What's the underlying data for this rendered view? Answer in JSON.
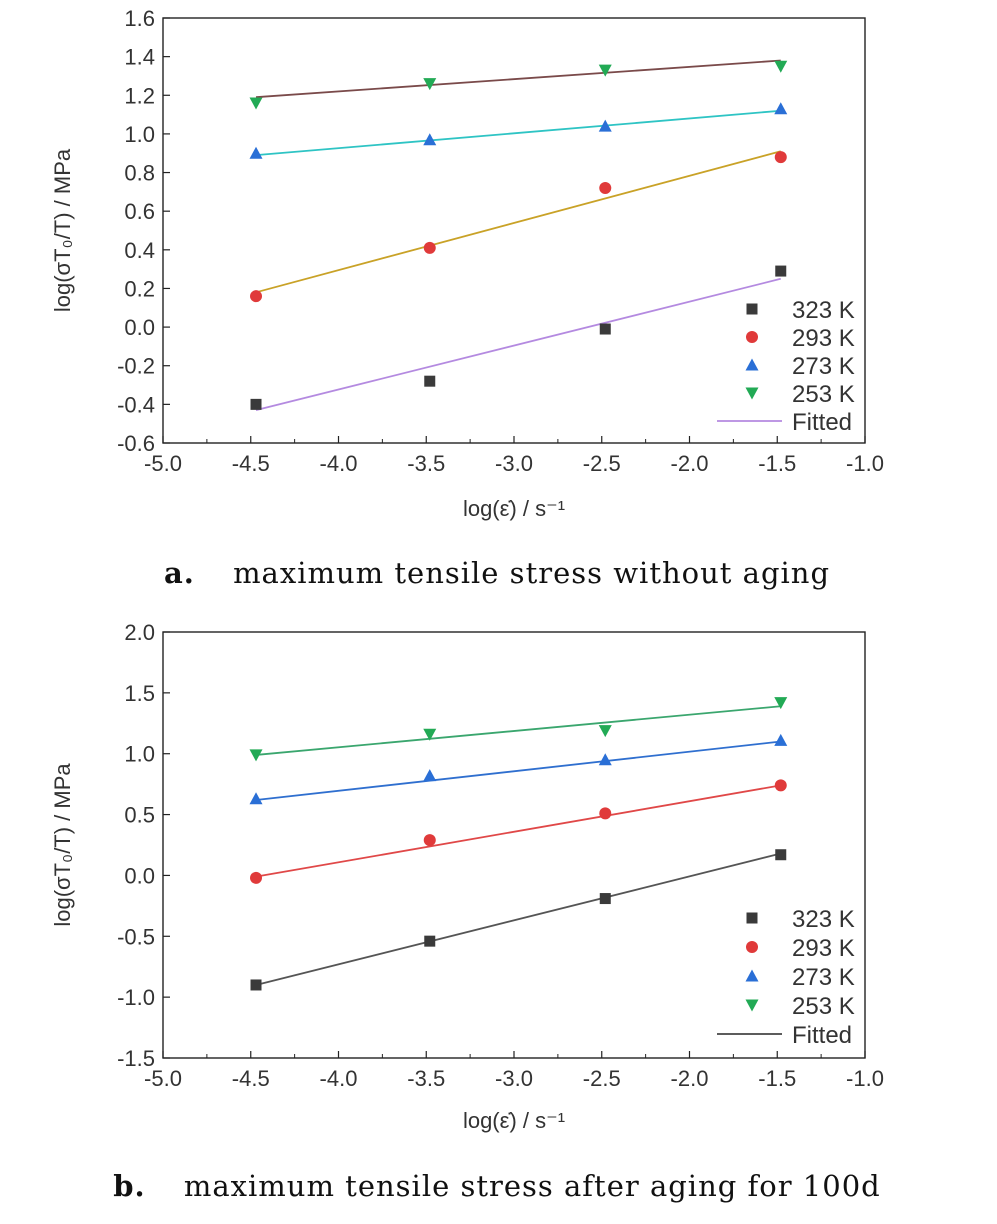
{
  "chart_data": [
    {
      "type": "scatter",
      "panel": "a.",
      "caption": "maximum tensile stress without aging",
      "xlabel": "log(ε̇) / s⁻¹",
      "ylabel": "log(σT₀/T) / MPa",
      "xlim": [
        -5.0,
        -1.0
      ],
      "ylim": [
        -0.6,
        1.6
      ],
      "x_ticks": [
        "-5.0",
        "-4.5",
        "-4.0",
        "-3.5",
        "-3.0",
        "-2.5",
        "-2.0",
        "-1.5",
        "-1.0"
      ],
      "y_ticks": [
        "-0.6",
        "-0.4",
        "-0.2",
        "0.0",
        "0.2",
        "0.4",
        "0.6",
        "0.8",
        "1.0",
        "1.2",
        "1.4",
        "1.6"
      ],
      "legend_position": "bottom-right",
      "fit_label": "Fitted",
      "series": [
        {
          "name": "323 K",
          "marker": "square",
          "color": "#3a3a3a",
          "fit_color": "#b48ae0",
          "x": [
            -4.47,
            -3.48,
            -2.48,
            -1.48
          ],
          "y": [
            -0.4,
            -0.28,
            -0.01,
            0.29
          ],
          "fit": [
            [
              -4.47,
              -0.43
            ],
            [
              -1.48,
              0.25
            ]
          ]
        },
        {
          "name": "293 K",
          "marker": "circle",
          "color": "#e03a3a",
          "fit_color": "#c9a227",
          "x": [
            -4.47,
            -3.48,
            -2.48,
            -1.48
          ],
          "y": [
            0.16,
            0.41,
            0.72,
            0.88
          ],
          "fit": [
            [
              -4.47,
              0.18
            ],
            [
              -1.48,
              0.91
            ]
          ]
        },
        {
          "name": "273 K",
          "marker": "triangle-up",
          "color": "#2a6fd6",
          "fit_color": "#2ec4c4",
          "x": [
            -4.47,
            -3.48,
            -2.48,
            -1.48
          ],
          "y": [
            0.9,
            0.97,
            1.04,
            1.13
          ],
          "fit": [
            [
              -4.47,
              0.89
            ],
            [
              -1.48,
              1.12
            ]
          ]
        },
        {
          "name": "253 K",
          "marker": "triangle-down",
          "color": "#22aa55",
          "fit_color": "#7a4a4a",
          "x": [
            -4.47,
            -3.48,
            -2.48,
            -1.48
          ],
          "y": [
            1.16,
            1.26,
            1.33,
            1.35
          ],
          "fit": [
            [
              -4.47,
              1.19
            ],
            [
              -1.48,
              1.38
            ]
          ]
        }
      ]
    },
    {
      "type": "scatter",
      "panel": "b.",
      "caption": "maximum tensile stress after aging for 100d",
      "xlabel": "log(ε̇) / s⁻¹",
      "ylabel": "log(σT₀/T) / MPa",
      "xlim": [
        -5.0,
        -1.0
      ],
      "ylim": [
        -1.5,
        2.0
      ],
      "x_ticks": [
        "-5.0",
        "-4.5",
        "-4.0",
        "-3.5",
        "-3.0",
        "-2.5",
        "-2.0",
        "-1.5",
        "-1.0"
      ],
      "y_ticks": [
        "-1.5",
        "-1.0",
        "-0.5",
        "0.0",
        "0.5",
        "1.0",
        "1.5",
        "2.0"
      ],
      "legend_position": "bottom-right",
      "fit_label": "Fitted",
      "series": [
        {
          "name": "323 K",
          "marker": "square",
          "color": "#3a3a3a",
          "fit_color": "#555555",
          "x": [
            -4.47,
            -3.48,
            -2.48,
            -1.48
          ],
          "y": [
            -0.9,
            -0.54,
            -0.19,
            0.17
          ],
          "fit": [
            [
              -4.47,
              -0.9
            ],
            [
              -1.48,
              0.18
            ]
          ]
        },
        {
          "name": "293 K",
          "marker": "circle",
          "color": "#e03a3a",
          "fit_color": "#e04848",
          "x": [
            -4.47,
            -3.48,
            -2.48,
            -1.48
          ],
          "y": [
            -0.02,
            0.29,
            0.51,
            0.74
          ],
          "fit": [
            [
              -4.47,
              -0.01
            ],
            [
              -1.48,
              0.74
            ]
          ]
        },
        {
          "name": "273 K",
          "marker": "triangle-up",
          "color": "#2a6fd6",
          "fit_color": "#2f6fcf",
          "x": [
            -4.47,
            -3.48,
            -2.48,
            -1.48
          ],
          "y": [
            0.63,
            0.82,
            0.95,
            1.11
          ],
          "fit": [
            [
              -4.47,
              0.62
            ],
            [
              -1.48,
              1.1
            ]
          ]
        },
        {
          "name": "253 K",
          "marker": "triangle-down",
          "color": "#22aa55",
          "fit_color": "#3aa66e",
          "x": [
            -4.47,
            -3.48,
            -2.48,
            -1.48
          ],
          "y": [
            0.99,
            1.16,
            1.19,
            1.42
          ],
          "fit": [
            [
              -4.47,
              0.99
            ],
            [
              -1.48,
              1.39
            ]
          ]
        }
      ]
    }
  ]
}
